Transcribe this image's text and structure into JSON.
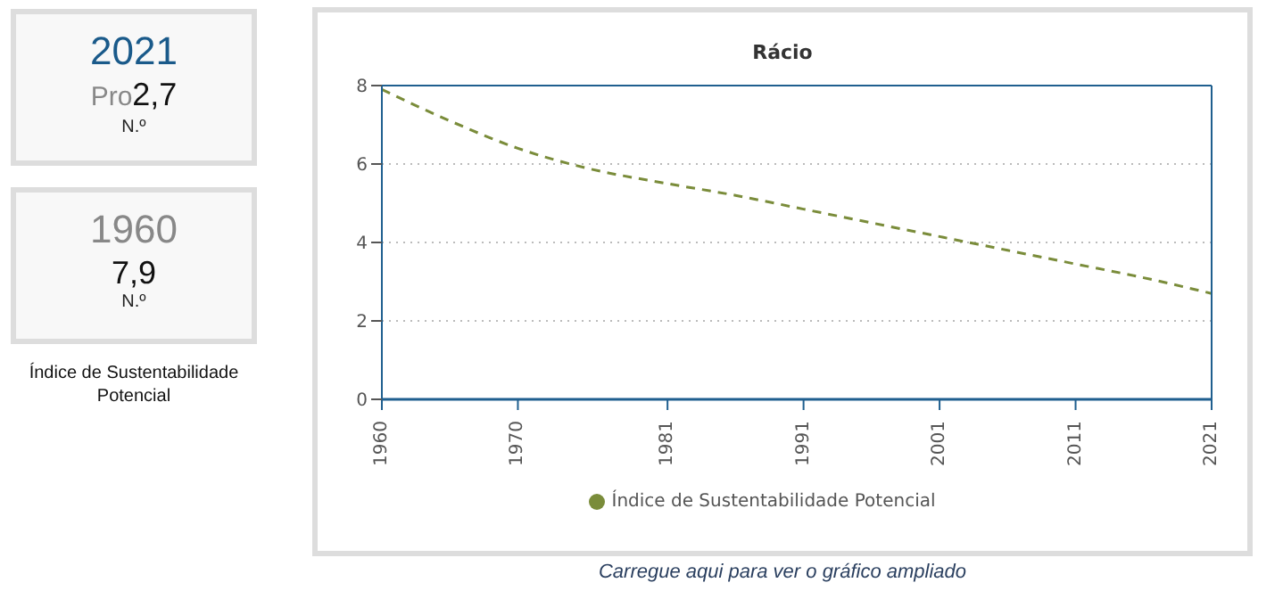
{
  "chart_data": [
    {
      "type": "other",
      "annotations": [
        "2021",
        "Pro",
        "2,7",
        "N.º"
      ]
    },
    {
      "type": "other",
      "annotations": [
        "1960",
        "7,9",
        "N.º"
      ],
      "subtitle": "Índice de Sustentabilidade Potencial"
    },
    {
      "type": "line",
      "title": "Rácio",
      "x": [
        1960,
        1965,
        1970,
        1975,
        1981,
        1986,
        1991,
        1996,
        2001,
        2006,
        2011,
        2016,
        2021
      ],
      "series": [
        {
          "name": "Índice de Sustentabilidade Potencial",
          "color": "#7a8c3a",
          "values": [
            7.9,
            7.1,
            6.4,
            5.9,
            5.5,
            5.2,
            4.85,
            4.5,
            4.15,
            3.8,
            3.45,
            3.1,
            2.7
          ]
        }
      ],
      "xlim": [
        1960,
        2021
      ],
      "xticks": [
        1960,
        1970,
        1981,
        1991,
        2001,
        2011,
        2021
      ],
      "ylim": [
        0,
        8
      ],
      "yticks": [
        0,
        2,
        4,
        6,
        8
      ],
      "grid": "y",
      "legend": "bottom",
      "marker": "none",
      "line_style": "dashed",
      "annotations": [
        "Carregue aqui para ver o gráfico ampliado"
      ]
    }
  ]
}
